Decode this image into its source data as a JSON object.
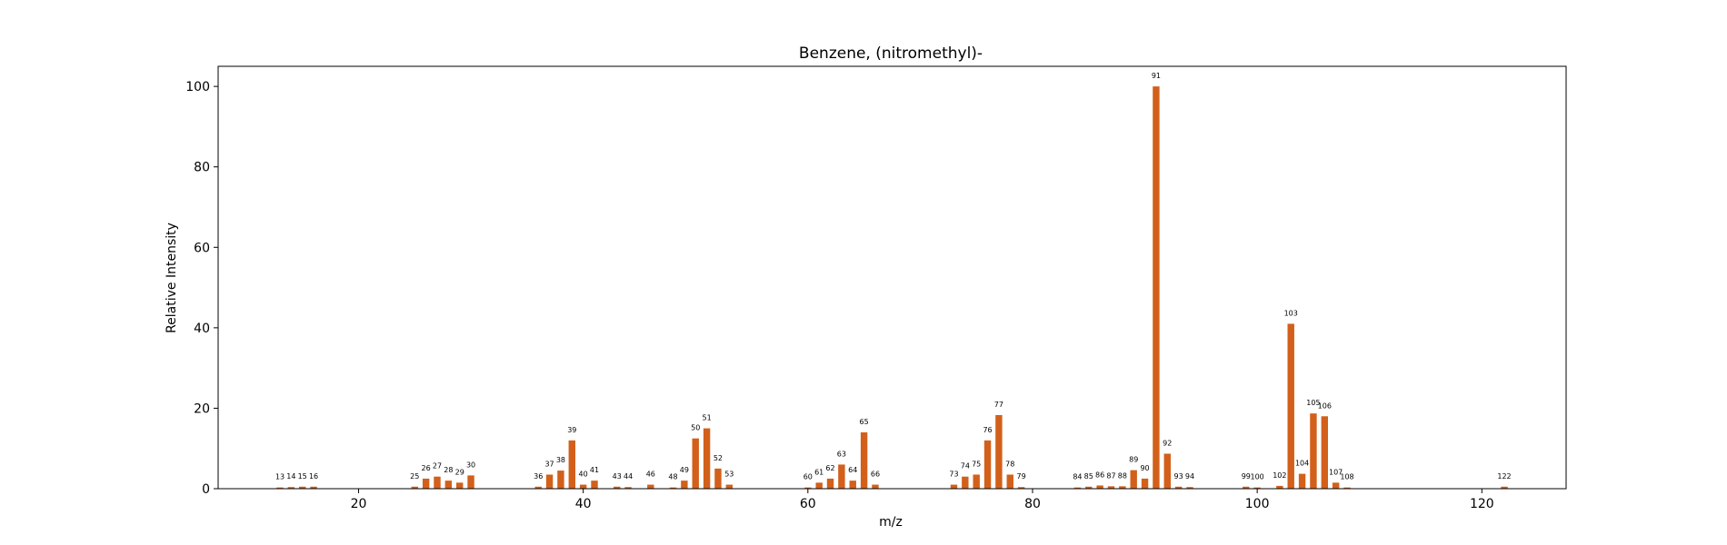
{
  "chart_data": {
    "type": "bar",
    "title": "Benzene, (nitromethyl)-",
    "xlabel": "m/z",
    "ylabel": "Relative Intensity",
    "xlim": [
      7.5,
      127.5
    ],
    "ylim": [
      0,
      105
    ],
    "xticks": [
      20,
      40,
      60,
      80,
      100,
      120
    ],
    "yticks": [
      0,
      20,
      40,
      60,
      80,
      100
    ],
    "bar_color": "#d2601a",
    "grid": false,
    "legend": "none",
    "x": [
      13,
      14,
      15,
      16,
      25,
      26,
      27,
      28,
      29,
      30,
      36,
      37,
      38,
      39,
      40,
      41,
      43,
      44,
      46,
      48,
      49,
      50,
      51,
      52,
      53,
      60,
      61,
      62,
      63,
      64,
      65,
      66,
      73,
      74,
      75,
      76,
      77,
      78,
      79,
      84,
      85,
      86,
      87,
      88,
      89,
      90,
      91,
      92,
      93,
      94,
      99,
      100,
      102,
      103,
      104,
      105,
      106,
      107,
      108,
      122
    ],
    "values": [
      0.3,
      0.4,
      0.5,
      0.5,
      0.5,
      2.5,
      3.0,
      2.0,
      1.5,
      3.3,
      0.5,
      3.5,
      4.5,
      12.0,
      1.0,
      2.0,
      0.5,
      0.4,
      1.0,
      0.3,
      2.0,
      12.5,
      15.0,
      5.0,
      1.0,
      0.3,
      1.5,
      2.5,
      6.0,
      2.0,
      14.0,
      1.0,
      1.0,
      3.0,
      3.5,
      12.0,
      18.3,
      3.5,
      0.4,
      0.3,
      0.5,
      0.8,
      0.6,
      0.6,
      4.6,
      2.5,
      100.0,
      8.7,
      0.5,
      0.4,
      0.5,
      0.3,
      0.7,
      41.0,
      3.7,
      18.7,
      18.0,
      1.5,
      0.3,
      0.5
    ],
    "labels": [
      "13",
      "14",
      "15",
      "16",
      "25",
      "26",
      "27",
      "28",
      "29",
      "30",
      "36",
      "37",
      "38",
      "39",
      "40",
      "41",
      "43",
      "44",
      "46",
      "48",
      "49",
      "50",
      "51",
      "52",
      "53",
      "60",
      "61",
      "62",
      "63",
      "64",
      "65",
      "66",
      "73",
      "74",
      "75",
      "76",
      "77",
      "78",
      "79",
      "84",
      "85",
      "86",
      "87",
      "88",
      "89",
      "90",
      "91",
      "92",
      "93",
      "94",
      "99",
      "100",
      "102",
      "103",
      "104",
      "105",
      "106",
      "107",
      "108",
      "122"
    ]
  }
}
